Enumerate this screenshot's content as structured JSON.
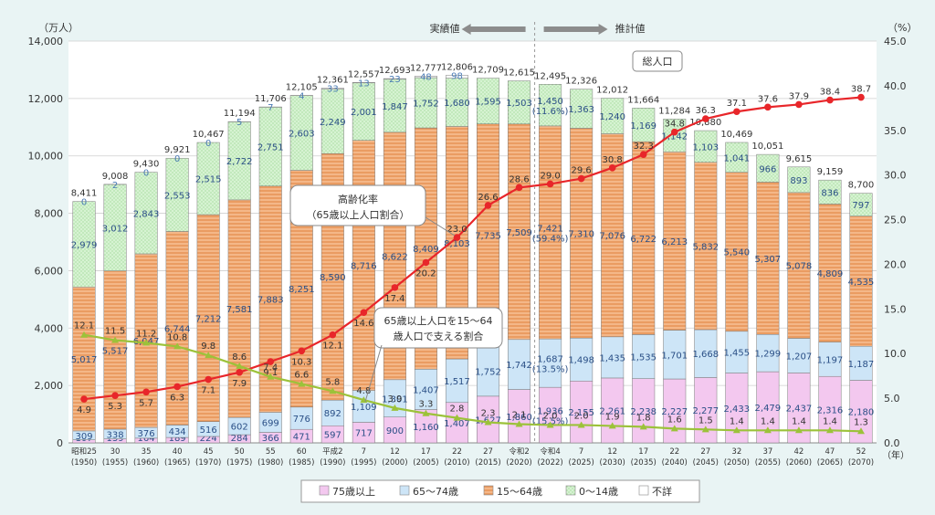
{
  "chart_data": {
    "type": "bar",
    "yunit_left": "（万人）",
    "yunit_right": "（%）",
    "xunit": "（年）",
    "ylim_left": [
      0,
      14000
    ],
    "yticks_left": [
      "0",
      "2,000",
      "4,000",
      "6,000",
      "8,000",
      "10,000",
      "12,000",
      "14,000"
    ],
    "ylim_right": [
      0,
      45
    ],
    "yticks_right": [
      "0.0",
      "5.0",
      "10.0",
      "15.0",
      "20.0",
      "25.0",
      "30.0",
      "35.0",
      "40.0",
      "45.0"
    ],
    "grid": true,
    "legend_position": "bottom",
    "divider": {
      "left_label": "実績値",
      "right_label": "推計値"
    },
    "categories": [
      {
        "era": "昭和25",
        "year": "(1950)"
      },
      {
        "era": "30",
        "year": "(1955)"
      },
      {
        "era": "35",
        "year": "(1960)"
      },
      {
        "era": "40",
        "year": "(1965)"
      },
      {
        "era": "45",
        "year": "(1970)"
      },
      {
        "era": "50",
        "year": "(1975)"
      },
      {
        "era": "55",
        "year": "(1980)"
      },
      {
        "era": "60",
        "year": "(1985)"
      },
      {
        "era": "平成2",
        "year": "(1990)"
      },
      {
        "era": "7",
        "year": "(1995)"
      },
      {
        "era": "12",
        "year": "(2000)"
      },
      {
        "era": "17",
        "year": "(2005)"
      },
      {
        "era": "22",
        "year": "(2010)"
      },
      {
        "era": "27",
        "year": "(2015)"
      },
      {
        "era": "令和2",
        "year": "(2020)"
      },
      {
        "era": "令和4",
        "year": "(2022)"
      },
      {
        "era": "7",
        "year": "(2025)"
      },
      {
        "era": "12",
        "year": "(2030)"
      },
      {
        "era": "17",
        "year": "(2035)"
      },
      {
        "era": "22",
        "year": "(2040)"
      },
      {
        "era": "27",
        "year": "(2045)"
      },
      {
        "era": "32",
        "year": "(2050)"
      },
      {
        "era": "37",
        "year": "(2055)"
      },
      {
        "era": "42",
        "year": "(2060)"
      },
      {
        "era": "47",
        "year": "(2065)"
      },
      {
        "era": "52",
        "year": "(2070)"
      }
    ],
    "totals": [
      8411,
      9008,
      9430,
      9921,
      10467,
      11194,
      11706,
      12105,
      12361,
      12557,
      12693,
      12777,
      12806,
      12709,
      12615,
      12495,
      12326,
      12012,
      11664,
      11284,
      10880,
      10469,
      10051,
      9615,
      9159,
      8700
    ],
    "total_labels": [
      "8,411",
      "9,008",
      "9,430",
      "9,921",
      "10,467",
      "11,194",
      "11,706",
      "12,105",
      "12,361",
      "12,557",
      "12,693",
      "12,777",
      "12,806",
      "12,709",
      "12,615",
      "12,495",
      "12,326",
      "12,012",
      "11,664",
      "11,284",
      "10,880",
      "10,469",
      "10,051",
      "9,615",
      "9,159",
      "8,700"
    ],
    "total_annotation": "総人口",
    "series": [
      {
        "name": "75歳以上",
        "color": "#f2c6ee",
        "values": [
          107,
          139,
          164,
          189,
          224,
          284,
          366,
          471,
          597,
          717,
          900,
          1160,
          1407,
          1627,
          1860,
          1936,
          2155,
          2261,
          2238,
          2227,
          2277,
          2433,
          2479,
          2437,
          2316,
          2180
        ],
        "labels": [
          "107",
          "139",
          "164",
          "189",
          "224",
          "284",
          "366",
          "471",
          "597",
          "717",
          "900",
          "1,160",
          "1,407",
          "1,627",
          "1,860",
          "1,936\n(15.5%)",
          "2,155",
          "2,261",
          "2,238",
          "2,227",
          "2,277",
          "2,433",
          "2,479",
          "2,437",
          "2,316",
          "2,180"
        ]
      },
      {
        "name": "65～74歳",
        "color": "#c9e2f6",
        "values": [
          309,
          338,
          376,
          434,
          516,
          602,
          699,
          776,
          892,
          1109,
          1301,
          1407,
          1517,
          1752,
          1742,
          1687,
          1498,
          1435,
          1535,
          1701,
          1668,
          1455,
          1299,
          1207,
          1197,
          1187
        ],
        "labels": [
          "309",
          "338",
          "376",
          "434",
          "516",
          "602",
          "699",
          "776",
          "892",
          "1,109",
          "1,301",
          "1,407",
          "1,517",
          "1,752",
          "1,742",
          "1,687\n(13.5%)",
          "1,498",
          "1,435",
          "1,535",
          "1,701",
          "1,668",
          "1,455",
          "1,299",
          "1,207",
          "1,197",
          "1,187"
        ]
      },
      {
        "name": "15～64歳",
        "color": "#f1a56b",
        "values": [
          5017,
          5517,
          6047,
          6744,
          7212,
          7581,
          7883,
          8251,
          8590,
          8716,
          8622,
          8409,
          8103,
          7735,
          7509,
          7421,
          7310,
          7076,
          6722,
          6213,
          5832,
          5540,
          5307,
          5078,
          4809,
          4535
        ],
        "labels": [
          "5,017",
          "5,517",
          "6,047",
          "6,744",
          "7,212",
          "7,581",
          "7,883",
          "8,251",
          "8,590",
          "8,716",
          "8,622",
          "8,409",
          "8,103",
          "7,735",
          "7,509",
          "7,421\n(59.4%)",
          "7,310",
          "7,076",
          "6,722",
          "6,213",
          "5,832",
          "5,540",
          "5,307",
          "5,078",
          "4,809",
          "4,535"
        ]
      },
      {
        "name": "0～14歳",
        "color": "#d3f2d0",
        "values": [
          2979,
          3012,
          2843,
          2553,
          2515,
          2722,
          2751,
          2603,
          2249,
          2001,
          1847,
          1752,
          1680,
          1595,
          1503,
          1450,
          1363,
          1240,
          1169,
          1142,
          1103,
          1041,
          966,
          893,
          836,
          797
        ],
        "labels": [
          "2,979",
          "3,012",
          "2,843",
          "2,553",
          "2,515",
          "2,722",
          "2,751",
          "2,603",
          "2,249",
          "2,001",
          "1,847",
          "1,752",
          "1,680",
          "1,595",
          "1,503",
          "1,450\n(11.6%)",
          "1,363",
          "1,240",
          "1,169",
          "1,142",
          "1,103",
          "1,041",
          "966",
          "893",
          "836",
          "797"
        ]
      },
      {
        "name": "不詳",
        "color": "#ffffff",
        "values": [
          0,
          2,
          0,
          0,
          0,
          5,
          7,
          4,
          33,
          13,
          23,
          48,
          98,
          0,
          0,
          0,
          0,
          0,
          0,
          0,
          0,
          0,
          0,
          0,
          0,
          0
        ],
        "labels": [
          "0",
          "2",
          "0",
          "0",
          "0",
          "5",
          "7",
          "4",
          "33",
          "13",
          "23",
          "48",
          "98",
          "",
          "",
          "",
          "",
          "",
          "",
          "",
          "",
          "",
          "",
          "",
          "",
          ""
        ]
      }
    ],
    "lines": [
      {
        "name": "高齢化率（65歳以上人口割合）",
        "color": "#e8262a",
        "marker": "circle",
        "values": [
          4.9,
          5.3,
          5.7,
          6.3,
          7.1,
          7.9,
          9.1,
          10.3,
          12.1,
          14.6,
          17.4,
          20.2,
          23.0,
          26.6,
          28.6,
          29.0,
          29.6,
          30.8,
          32.3,
          34.8,
          36.3,
          37.1,
          37.6,
          37.9,
          38.4,
          38.7
        ],
        "labels": [
          "4.9",
          "5.3",
          "5.7",
          "6.3",
          "7.1",
          "7.9",
          "9.1",
          "10.3",
          "12.1",
          "14.6",
          "17.4",
          "20.2",
          "23.0",
          "26.6",
          "28.6",
          "29.0",
          "29.6",
          "30.8",
          "32.3",
          "34.8",
          "36.3",
          "37.1",
          "37.6",
          "37.9",
          "38.4",
          "38.7"
        ],
        "callout": [
          "高齢化率",
          "（65歳以上人口割合）"
        ]
      },
      {
        "name": "65歳以上人口を15～64歳人口で支える割合",
        "color": "#9cc23a",
        "marker": "triangle",
        "values": [
          12.1,
          11.5,
          11.2,
          10.8,
          9.8,
          8.6,
          7.4,
          6.6,
          5.8,
          4.8,
          3.9,
          3.3,
          2.8,
          2.3,
          2.1,
          2.0,
          2.0,
          1.9,
          1.8,
          1.6,
          1.5,
          1.4,
          1.4,
          1.4,
          1.4,
          1.3
        ],
        "labels": [
          "12.1",
          "11.5",
          "11.2",
          "10.8",
          "9.8",
          "8.6",
          "7.4",
          "6.6",
          "5.8",
          "4.8",
          "3.9",
          "3.3",
          "2.8",
          "2.3",
          "2.1",
          "2.0",
          "2.0",
          "1.9",
          "1.8",
          "1.6",
          "1.5",
          "1.4",
          "1.4",
          "1.4",
          "1.4",
          "1.3"
        ],
        "callout": [
          "65歳以上人口を15～64",
          "歳人口で支える割合"
        ]
      }
    ],
    "legend": [
      {
        "label": "75歳以上",
        "color": "#f2c6ee"
      },
      {
        "label": "65～74歳",
        "color": "#c9e2f6"
      },
      {
        "label": "15～64歳",
        "color": "#f1a56b"
      },
      {
        "label": "0～14歳",
        "color": "#d3f2d0"
      },
      {
        "label": "不詳",
        "color": "#ffffff"
      }
    ]
  }
}
